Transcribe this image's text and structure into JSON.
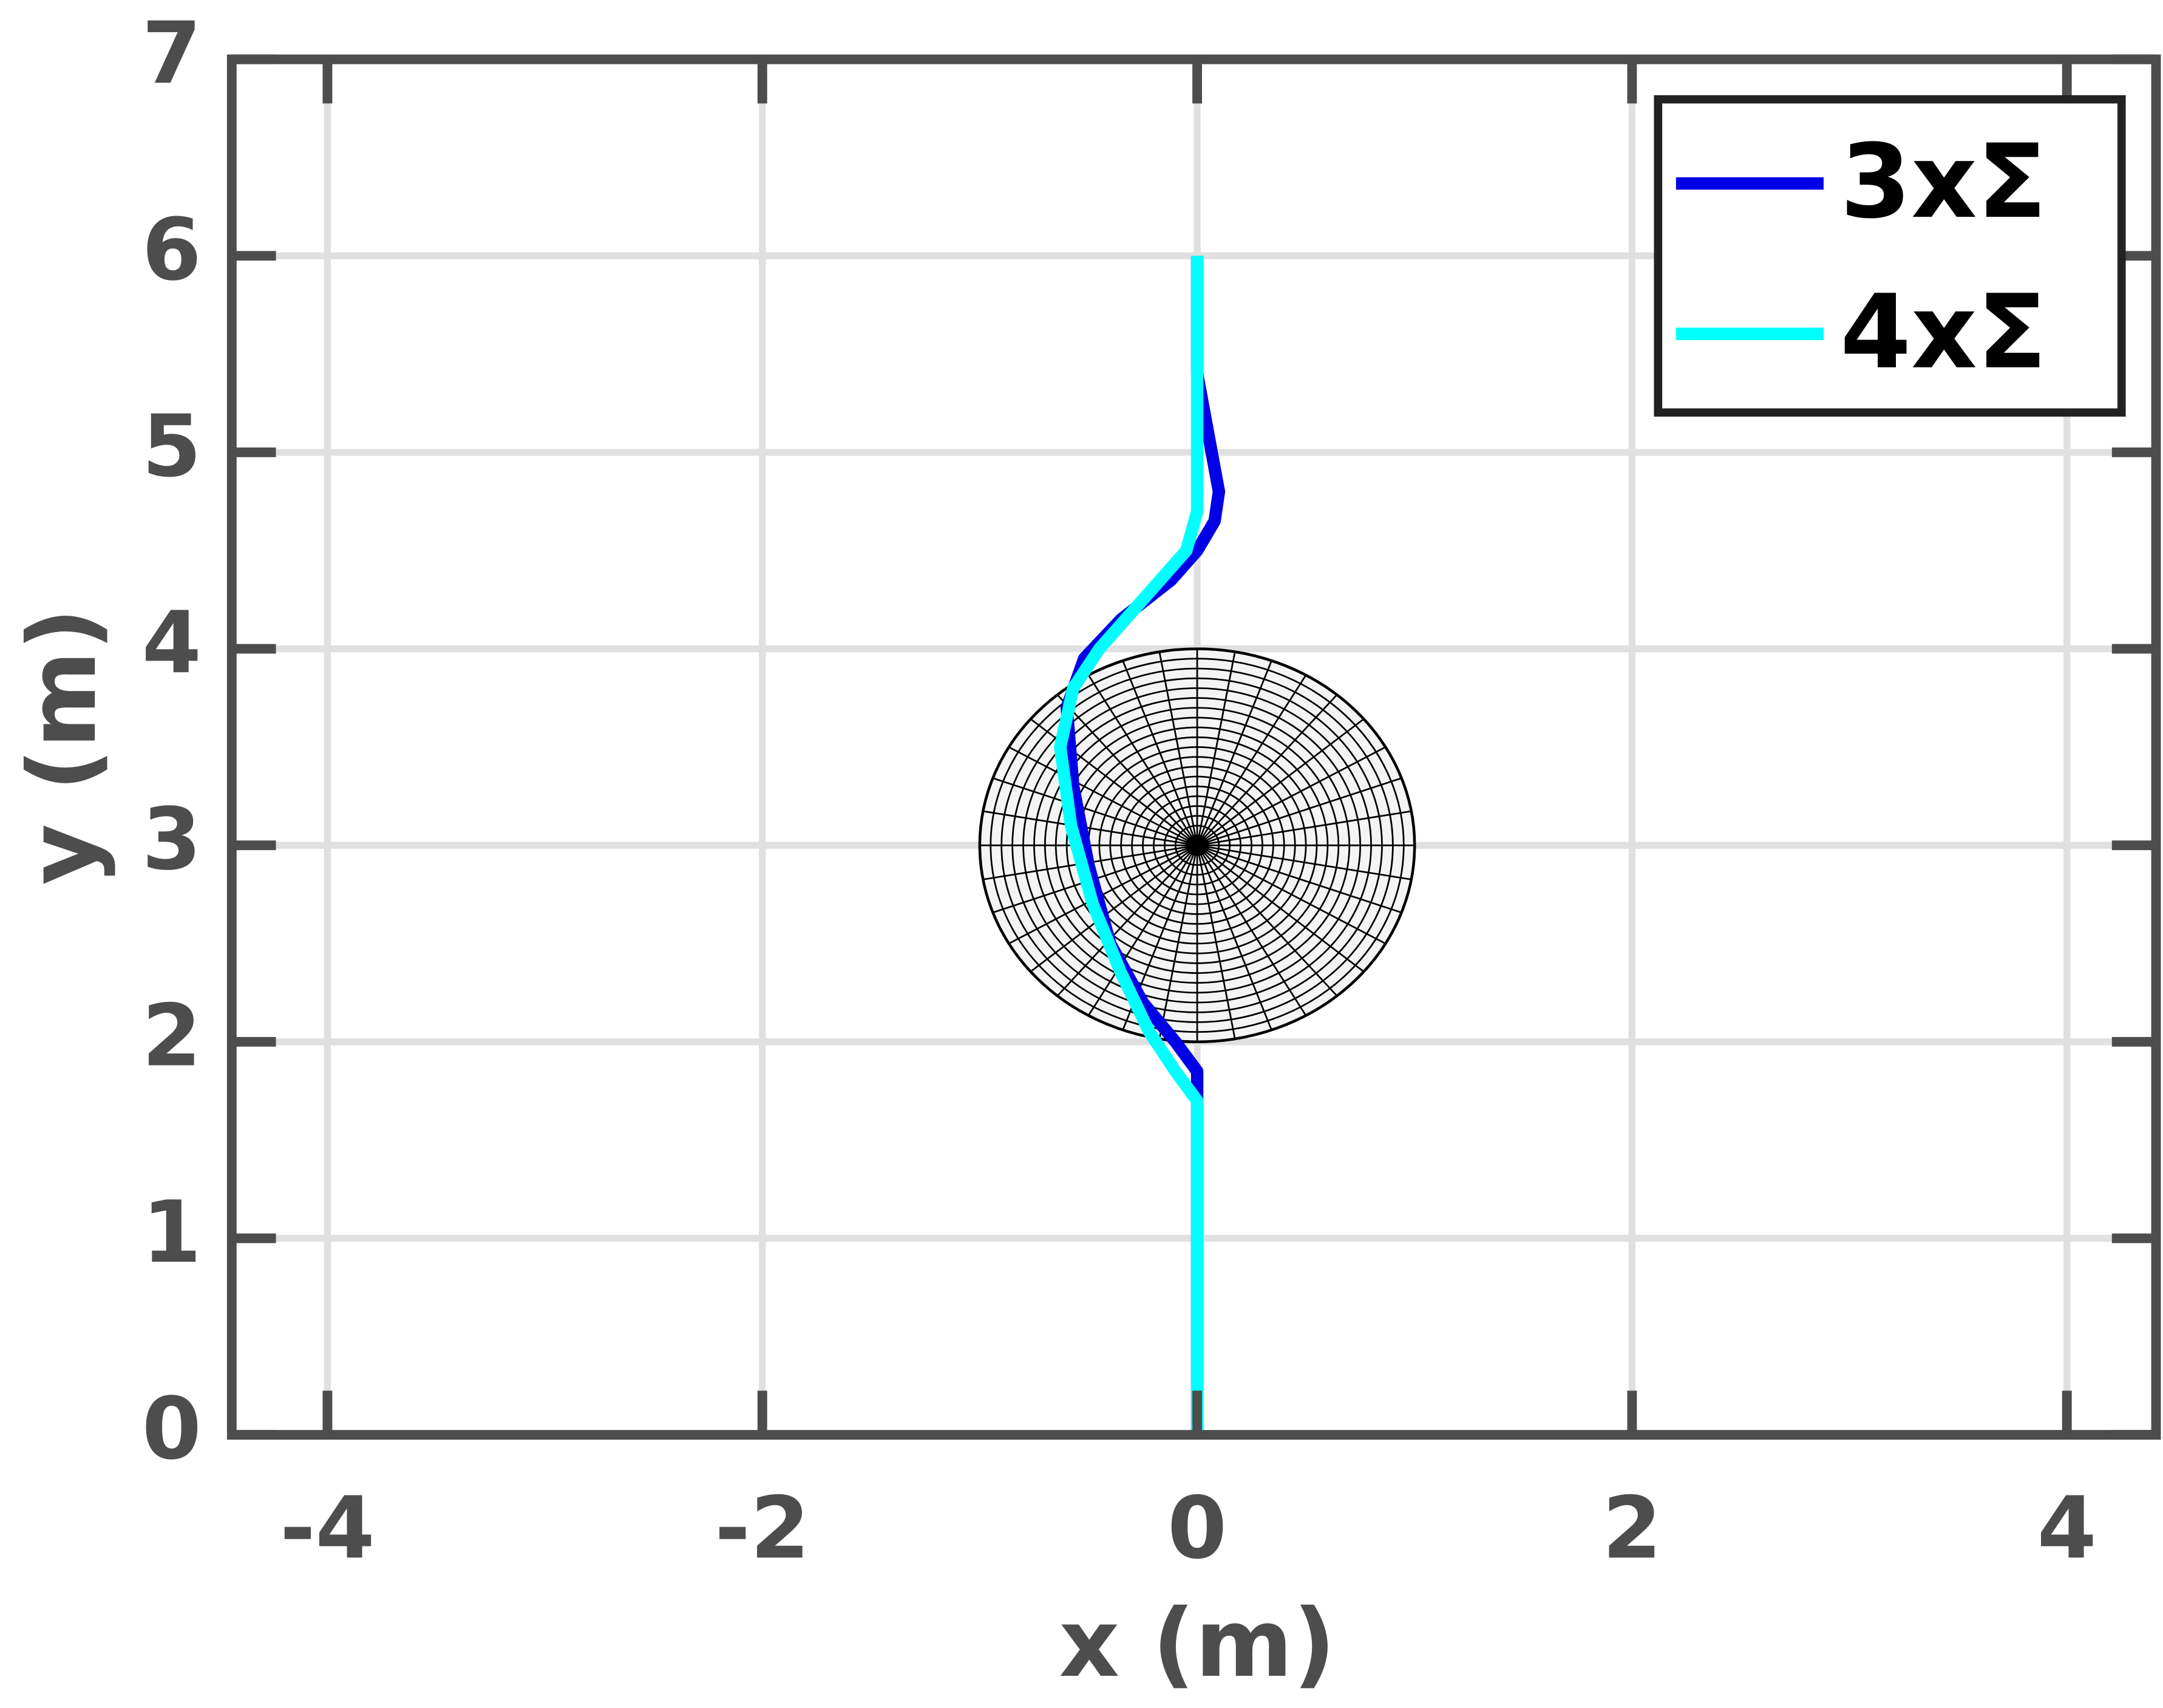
{
  "chart_data": {
    "type": "line",
    "xlabel": "x (m)",
    "ylabel": "y (m)",
    "xlim": [
      -4.44,
      4.41
    ],
    "ylim": [
      0,
      7
    ],
    "xticks": [
      -4,
      -2,
      0,
      2,
      4
    ],
    "yticks": [
      0,
      1,
      2,
      3,
      4,
      5,
      6,
      7
    ],
    "grid": true,
    "legend": "upper right",
    "obstacle": {
      "center": [
        0,
        3
      ],
      "radius": 1
    },
    "series": [
      {
        "name": "3xΣ",
        "color": "#0000e6",
        "x": [
          0,
          0,
          0,
          -0.1,
          -0.25,
          -0.4,
          -0.5,
          -0.57,
          -0.6,
          -0.52,
          -0.35,
          -0.12,
          0.0,
          0.08,
          0.1,
          0.05,
          0,
          0
        ],
        "values": [
          0,
          1.7,
          1.85,
          2.0,
          2.2,
          2.5,
          2.9,
          3.3,
          3.7,
          3.95,
          4.15,
          4.35,
          4.5,
          4.65,
          4.8,
          5.1,
          5.4,
          6
        ]
      },
      {
        "name": "4xΣ",
        "color": "#00ffff",
        "x": [
          0,
          0,
          0,
          -0.1,
          -0.22,
          -0.35,
          -0.48,
          -0.58,
          -0.63,
          -0.57,
          -0.45,
          -0.25,
          -0.05,
          0,
          0,
          0
        ],
        "values": [
          0,
          1.6,
          1.7,
          1.85,
          2.05,
          2.35,
          2.7,
          3.1,
          3.5,
          3.8,
          4.0,
          4.25,
          4.5,
          4.7,
          5.0,
          6
        ]
      }
    ]
  }
}
